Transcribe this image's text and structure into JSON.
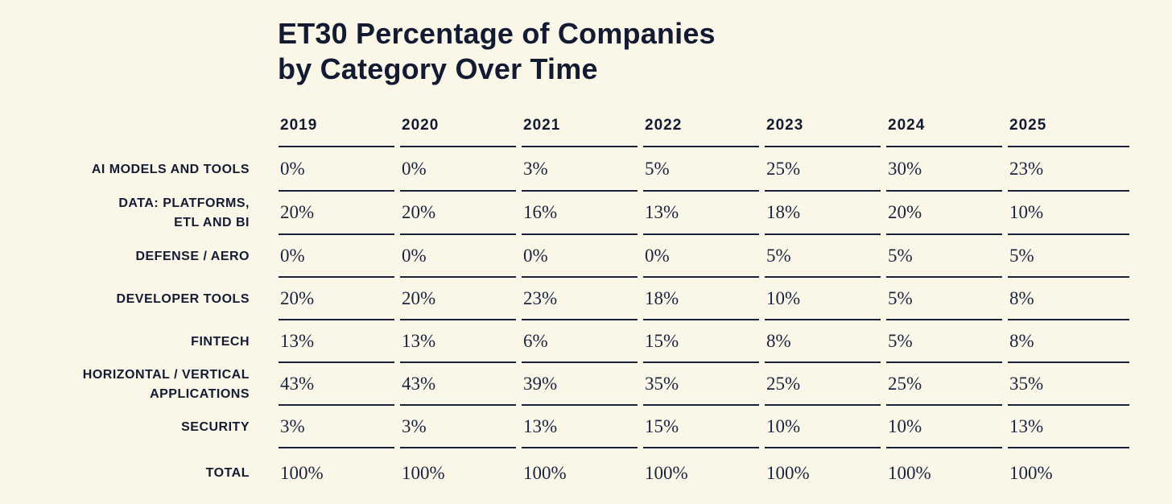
{
  "page": {
    "background_color": "#FAF6E8",
    "text_color": "#131B33",
    "line_color": "#1A2238"
  },
  "title": {
    "line1": "ET30 Percentage of Companies",
    "line2": "by Category Over Time"
  },
  "table": {
    "year_headers": [
      "2019",
      "2020",
      "2021",
      "2022",
      "2023",
      "2024",
      "2025"
    ],
    "rows": [
      {
        "label": "AI MODELS AND TOOLS",
        "values": [
          "0%",
          "0%",
          "3%",
          "5%",
          "25%",
          "30%",
          "23%"
        ]
      },
      {
        "label": "DATA: PLATFORMS,\nETL AND BI",
        "values": [
          "20%",
          "20%",
          "16%",
          "13%",
          "18%",
          "20%",
          "10%"
        ]
      },
      {
        "label": "DEFENSE / AERO",
        "values": [
          "0%",
          "0%",
          "0%",
          "0%",
          "5%",
          "5%",
          "5%"
        ]
      },
      {
        "label": "DEVELOPER TOOLS",
        "values": [
          "20%",
          "20%",
          "23%",
          "18%",
          "10%",
          "5%",
          "8%"
        ]
      },
      {
        "label": "FINTECH",
        "values": [
          "13%",
          "13%",
          "6%",
          "15%",
          "8%",
          "5%",
          "8%"
        ]
      },
      {
        "label": "HORIZONTAL / VERTICAL\nAPPLICATIONS",
        "values": [
          "43%",
          "43%",
          "39%",
          "35%",
          "25%",
          "25%",
          "35%"
        ]
      },
      {
        "label": "SECURITY",
        "values": [
          "3%",
          "3%",
          "13%",
          "15%",
          "10%",
          "10%",
          "13%"
        ]
      },
      {
        "label": "TOTAL",
        "values": [
          "100%",
          "100%",
          "100%",
          "100%",
          "100%",
          "100%",
          "100%"
        ]
      }
    ]
  },
  "chart_data": {
    "type": "table",
    "title": "ET30 Percentage of Companies by Category Over Time",
    "columns": [
      "2019",
      "2020",
      "2021",
      "2022",
      "2023",
      "2024",
      "2025"
    ],
    "unit": "percent",
    "series": [
      {
        "name": "AI Models and Tools",
        "values": [
          0,
          0,
          3,
          5,
          25,
          30,
          23
        ]
      },
      {
        "name": "Data: Platforms, ETL and BI",
        "values": [
          20,
          20,
          16,
          13,
          18,
          20,
          10
        ]
      },
      {
        "name": "Defense / Aero",
        "values": [
          0,
          0,
          0,
          0,
          5,
          5,
          5
        ]
      },
      {
        "name": "Developer Tools",
        "values": [
          20,
          20,
          23,
          18,
          10,
          5,
          8
        ]
      },
      {
        "name": "Fintech",
        "values": [
          13,
          13,
          6,
          15,
          8,
          5,
          8
        ]
      },
      {
        "name": "Horizontal / Vertical Applications",
        "values": [
          43,
          43,
          39,
          35,
          25,
          25,
          35
        ]
      },
      {
        "name": "Security",
        "values": [
          3,
          3,
          13,
          15,
          10,
          10,
          13
        ]
      },
      {
        "name": "Total",
        "values": [
          100,
          100,
          100,
          100,
          100,
          100,
          100
        ]
      }
    ]
  }
}
